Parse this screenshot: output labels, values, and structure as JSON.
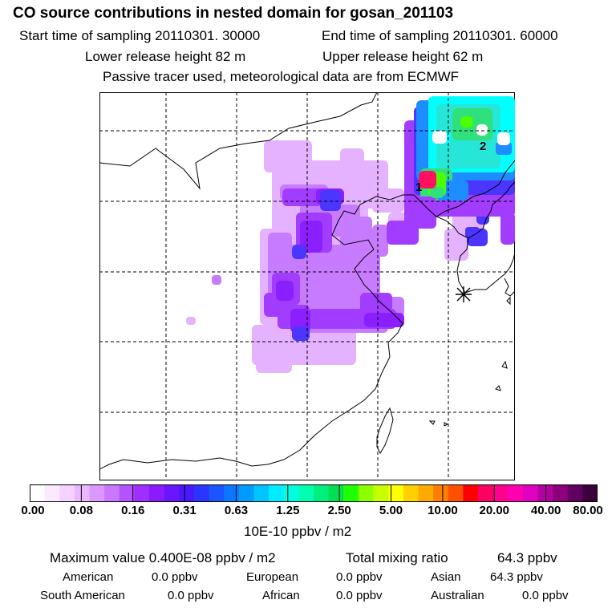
{
  "header": {
    "title": "CO  source contributions in nested domain for gosan_201103",
    "start_label": "Start time of sampling 20110301. 30000",
    "end_label": "End time of sampling 20110301. 60000",
    "lower_label": "Lower release height   82 m",
    "upper_label": "Upper release height   62 m",
    "note": "Passive tracer used, meteorological data are from ECMWF"
  },
  "map": {
    "site_labels": [
      "1",
      "2"
    ],
    "plume_colors": {
      "light": "#e4b2ff",
      "lilac": "#c77cff",
      "violet": "#a23cff",
      "purple": "#8b1fff",
      "blue": "#4b35ff",
      "sky": "#1d8dff",
      "cyan": "#00ffff",
      "aqua": "#25e6d7",
      "green": "#30e07a",
      "lime": "#4cff00",
      "hot": "#ff1060"
    }
  },
  "colorbar": {
    "colors": [
      "#ffffff",
      "#fbe9ff",
      "#f5d2ff",
      "#ebb7ff",
      "#dc98ff",
      "#ca76ff",
      "#b552ff",
      "#9f2fff",
      "#8a1bff",
      "#6b14ff",
      "#4a18ff",
      "#2a36ff",
      "#1a55ff",
      "#0b78ff",
      "#009bff",
      "#00c4ff",
      "#00ecff",
      "#00ffe0",
      "#00ffb0",
      "#00f080",
      "#00e050",
      "#20ff00",
      "#8cff00",
      "#c8ff00",
      "#ffff00",
      "#ffd000",
      "#ffaa00",
      "#ff7f00",
      "#ff5000",
      "#ff0000",
      "#ff0060",
      "#ff0090",
      "#ff00b0",
      "#e000c0",
      "#b000a0",
      "#8c007c",
      "#600060",
      "#3c003c"
    ],
    "tick_labels": [
      "0.00",
      "0.08",
      "0.16",
      "0.31",
      "0.63",
      "1.25",
      "2.50",
      "5.00",
      "10.00",
      "20.00",
      "40.00",
      "80.00"
    ],
    "units": "10E-10 ppbv / m2"
  },
  "stats": {
    "max_label": "Maximum value  0.400E-08 ppbv / m2",
    "total_label": "Total mixing ratio",
    "total_value": "64.3 ppbv",
    "regions": [
      {
        "name": "American",
        "value": "0.0 ppbv"
      },
      {
        "name": "European",
        "value": "0.0 ppbv"
      },
      {
        "name": "Asian",
        "value": "64.3 ppbv"
      },
      {
        "name": "South American",
        "value": "0.0 ppbv"
      },
      {
        "name": "African",
        "value": "0.0 ppbv"
      },
      {
        "name": "Australian",
        "value": "0.0 ppbv"
      }
    ]
  }
}
